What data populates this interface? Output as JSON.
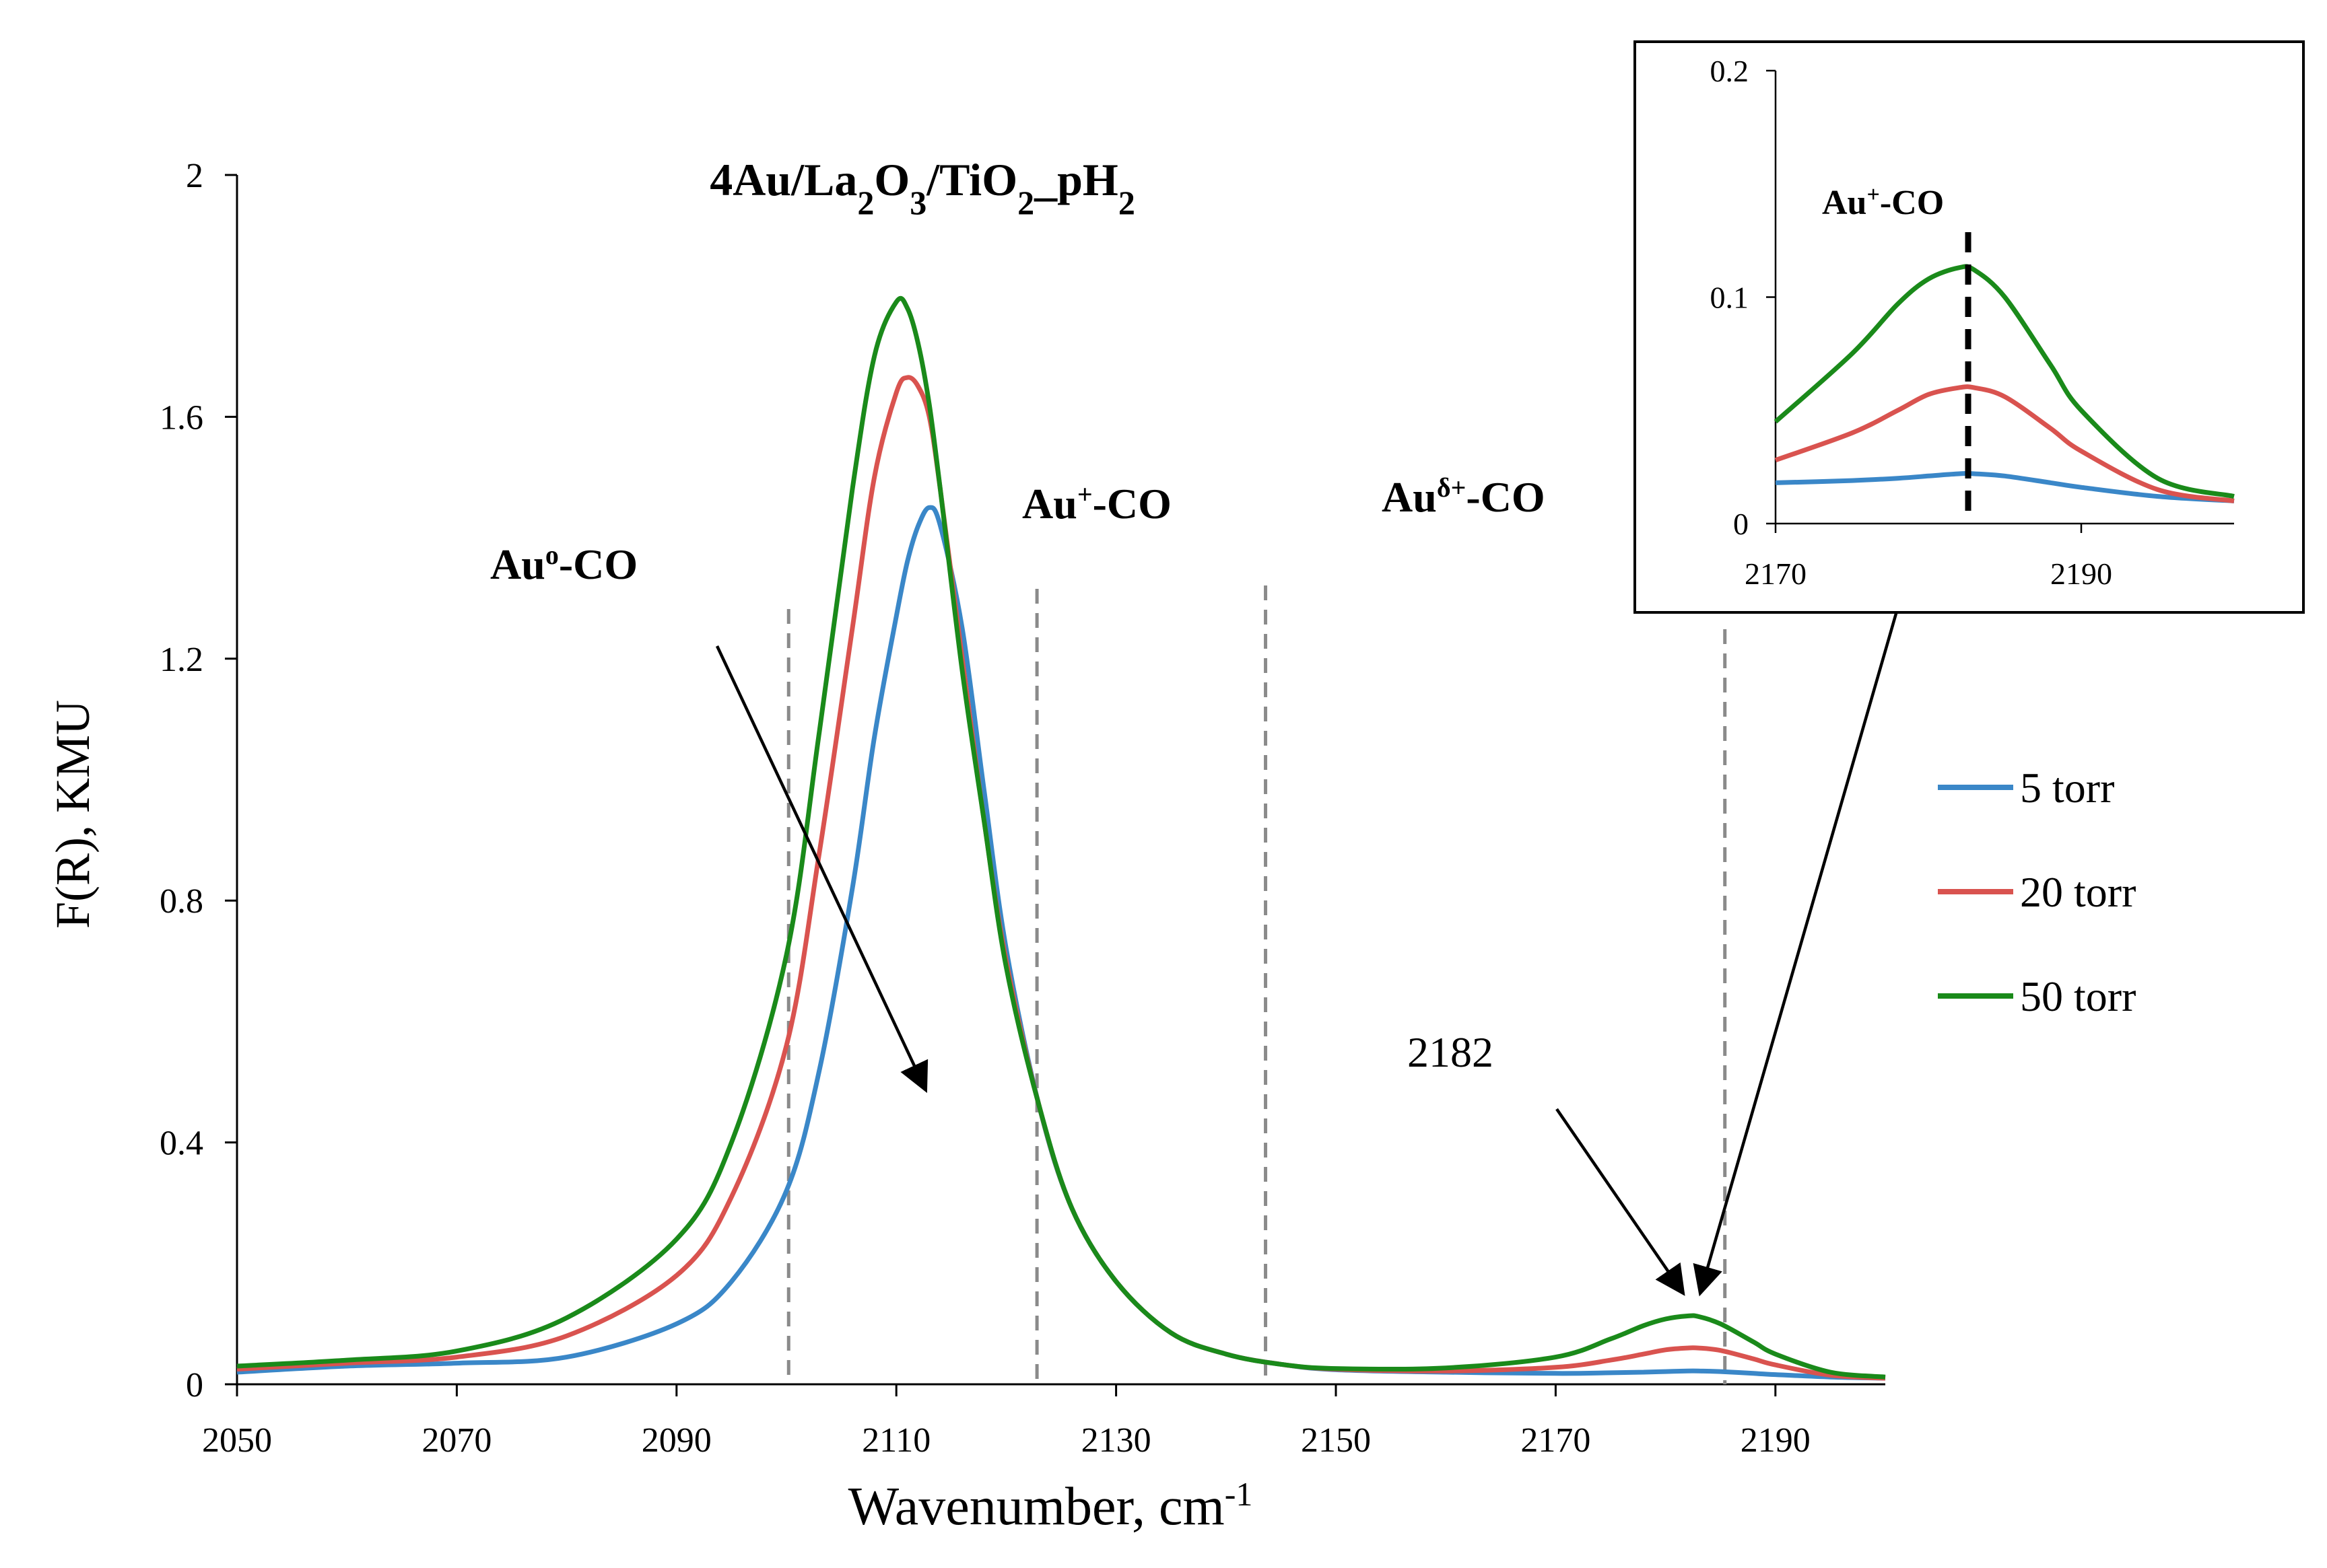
{
  "chart_data": [
    {
      "type": "line",
      "title_parts": [
        {
          "t": "4Au/La",
          "sub": false
        },
        {
          "t": "2",
          "sub": true
        },
        {
          "t": "O",
          "sub": false
        },
        {
          "t": "3",
          "sub": true
        },
        {
          "t": "/TiO",
          "sub": false
        },
        {
          "t": "2",
          "sub": true
        },
        {
          "t": "_pH",
          "sub": false
        },
        {
          "t": "2",
          "sub": true
        }
      ],
      "title_text": "4Au/La2O3/TiO2_pH2",
      "xlabel_main": "Wavenumber, cm",
      "xlabel_sup": "-1",
      "ylabel": "F(R), KMU",
      "xlim": [
        2050,
        2200
      ],
      "ylim": [
        0,
        2
      ],
      "xticks": [
        2050,
        2070,
        2090,
        2110,
        2130,
        2150,
        2170,
        2190
      ],
      "yticks": [
        {
          "v": 0,
          "label": "0"
        },
        {
          "v": 0.4,
          "label": "0.4"
        },
        {
          "v": 0.8,
          "label": "0.8"
        },
        {
          "v": 1.2,
          "label": "1.2"
        },
        {
          "v": 1.6,
          "label": "1.6"
        },
        {
          "v": 2,
          "label": "2"
        }
      ],
      "x": [
        2050,
        2060,
        2070,
        2080,
        2090,
        2095,
        2100,
        2103,
        2106,
        2108,
        2110,
        2111,
        2112,
        2113,
        2114,
        2116,
        2118,
        2120,
        2123,
        2126,
        2130,
        2135,
        2140,
        2145,
        2150,
        2160,
        2170,
        2175,
        2178,
        2180,
        2182,
        2183,
        2185,
        2188,
        2190,
        2195,
        2200
      ],
      "series": [
        {
          "name": "5 torr",
          "color": "#3a87c8",
          "values": [
            0.02,
            0.03,
            0.035,
            0.045,
            0.1,
            0.17,
            0.32,
            0.52,
            0.82,
            1.07,
            1.27,
            1.36,
            1.42,
            1.45,
            1.42,
            1.25,
            0.98,
            0.72,
            0.46,
            0.29,
            0.17,
            0.085,
            0.05,
            0.033,
            0.024,
            0.02,
            0.018,
            0.019,
            0.02,
            0.021,
            0.022,
            0.022,
            0.021,
            0.018,
            0.016,
            0.012,
            0.01
          ]
        },
        {
          "name": "20 torr",
          "color": "#d9534f",
          "values": [
            0.025,
            0.035,
            0.045,
            0.08,
            0.18,
            0.31,
            0.56,
            0.88,
            1.25,
            1.5,
            1.64,
            1.665,
            1.65,
            1.6,
            1.48,
            1.2,
            0.93,
            0.7,
            0.46,
            0.29,
            0.17,
            0.085,
            0.05,
            0.033,
            0.025,
            0.022,
            0.028,
            0.04,
            0.05,
            0.057,
            0.06,
            0.06,
            0.056,
            0.042,
            0.032,
            0.015,
            0.01
          ]
        },
        {
          "name": "50 torr",
          "color": "#1a8a1a",
          "values": [
            0.03,
            0.04,
            0.055,
            0.11,
            0.24,
            0.4,
            0.71,
            1.08,
            1.48,
            1.7,
            1.79,
            1.78,
            1.72,
            1.62,
            1.48,
            1.18,
            0.93,
            0.69,
            0.46,
            0.29,
            0.17,
            0.085,
            0.05,
            0.033,
            0.026,
            0.027,
            0.045,
            0.075,
            0.097,
            0.108,
            0.113,
            0.112,
            0.1,
            0.07,
            0.05,
            0.02,
            0.012
          ]
        }
      ],
      "annotations": [
        {
          "text": "Au",
          "sup": "o",
          "rest": "-CO"
        },
        {
          "text": "Au",
          "sup": "+",
          "rest": "-CO"
        },
        {
          "text": "Au",
          "sup": "δ+",
          "rest": "-CO"
        },
        {
          "text": "2182",
          "sup": "",
          "rest": ""
        }
      ],
      "reference_lines_x": [
        2100.2,
        2122.8,
        2143.6,
        2185.4
      ]
    },
    {
      "type": "line",
      "role": "inset",
      "xlim": [
        2170,
        2200
      ],
      "ylim": [
        0,
        0.2
      ],
      "xticks": [
        2170,
        2190
      ],
      "yticks": [
        {
          "v": 0,
          "label": "0"
        },
        {
          "v": 0.1,
          "label": "0.1"
        },
        {
          "v": 0.2,
          "label": "0.2"
        }
      ],
      "marker_x": 2182.6,
      "annotation": {
        "text": "Au",
        "sup": "+",
        "rest": "-CO"
      }
    }
  ]
}
